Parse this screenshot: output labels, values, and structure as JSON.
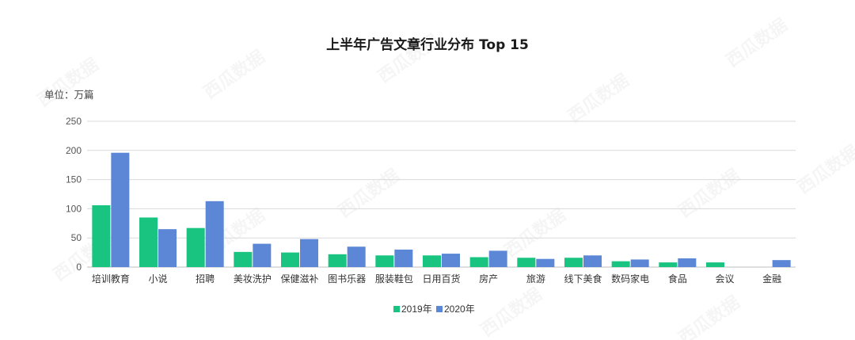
{
  "watermark": "西瓜数据",
  "chart_data": {
    "type": "bar",
    "title": "上半年广告文章行业分布 Top 15",
    "unit_label": "单位：万篇",
    "xlabel": "",
    "ylabel": "",
    "ylim": [
      0,
      250
    ],
    "yticks": [
      0,
      50,
      100,
      150,
      200,
      250
    ],
    "grid": true,
    "legend_position": "bottom-center",
    "categories": [
      "培训教育",
      "小说",
      "招聘",
      "美妆洗护",
      "保健滋补",
      "图书乐器",
      "服装鞋包",
      "日用百货",
      "房产",
      "旅游",
      "线下美食",
      "数码家电",
      "食品",
      "会议",
      "金融"
    ],
    "series": [
      {
        "name": "2019年",
        "color": "#18c47f",
        "values": [
          106,
          85,
          67,
          26,
          25,
          22,
          20,
          20,
          17,
          16,
          16,
          10,
          8,
          8,
          0
        ]
      },
      {
        "name": "2020年",
        "color": "#5b87d6",
        "values": [
          196,
          65,
          113,
          40,
          48,
          35,
          30,
          23,
          28,
          14,
          20,
          13,
          15,
          0,
          12
        ]
      }
    ]
  }
}
